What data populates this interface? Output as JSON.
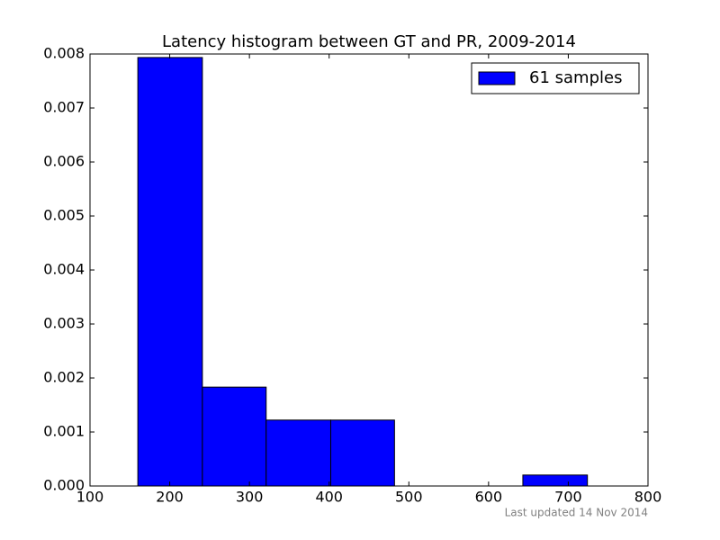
{
  "chart_data": {
    "type": "histogram",
    "title": "Latency histogram between GT and PR, 2009-2014",
    "bins": [
      160,
      241,
      321,
      402,
      482,
      563,
      643,
      724
    ],
    "values": [
      0.007935,
      0.001831,
      0.001221,
      0.001221,
      0,
      0,
      0.000203
    ],
    "color": "#0000ff",
    "legend_label": "61 samples",
    "legend_position": "upper right",
    "note": "Last updated 14 Nov 2014",
    "xlim": [
      100,
      800
    ],
    "xticks": [
      100,
      200,
      300,
      400,
      500,
      600,
      700,
      800
    ],
    "ylim": [
      0,
      0.008
    ],
    "yticks": [
      {
        "value": 0,
        "label": "0.000"
      },
      {
        "value": 0.001,
        "label": "0.001"
      },
      {
        "value": 0.002,
        "label": "0.002"
      },
      {
        "value": 0.003,
        "label": "0.003"
      },
      {
        "value": 0.004,
        "label": "0.004"
      },
      {
        "value": 0.005,
        "label": "0.005"
      },
      {
        "value": 0.006,
        "label": "0.006"
      },
      {
        "value": 0.007,
        "label": "0.007"
      },
      {
        "value": 0.008,
        "label": "0.008"
      }
    ]
  }
}
